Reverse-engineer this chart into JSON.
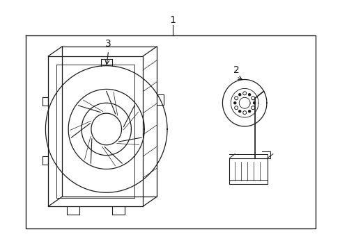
{
  "background_color": "#ffffff",
  "line_color": "#1a1a1a",
  "label1": "1",
  "label2": "2",
  "label3": "3",
  "figsize": [
    4.89,
    3.6
  ],
  "dpi": 100
}
